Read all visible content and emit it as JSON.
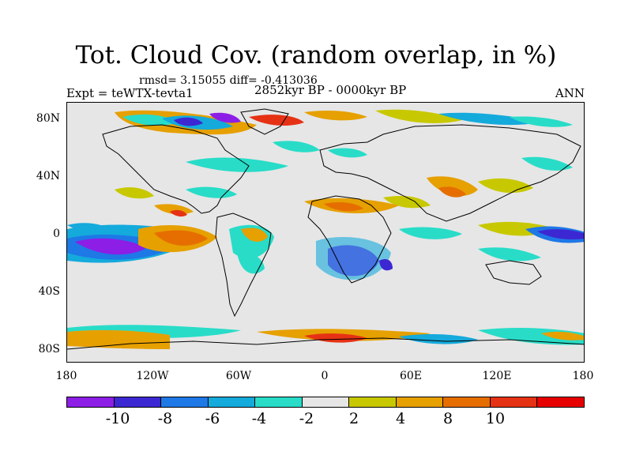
{
  "title": "Tot. Cloud Cov. (random overlap, in %)",
  "stats": "rmsd= 3.15055 diff= -0.413036",
  "experiment": "Expt = teWTX-tevta1",
  "period": "2852kyr BP - 0000kyr BP",
  "season": "ANN",
  "y_axis_labels": [
    "80N",
    "40N",
    "0",
    "40S",
    "80S"
  ],
  "x_axis_labels": [
    "180",
    "120W",
    "60W",
    "0",
    "60E",
    "120E",
    "180"
  ],
  "colorbar": {
    "colors": [
      "#8c1ee6",
      "#3c28d2",
      "#1e78e6",
      "#14aadc",
      "#28dcc8",
      "#e6e6e6",
      "#c8c800",
      "#e6a000",
      "#e66e00",
      "#e63214",
      "#e60000"
    ],
    "tick_labels": [
      "-10",
      "-8",
      "-6",
      "-4",
      "-2",
      "2",
      "4",
      "8",
      "10"
    ]
  },
  "map_data": {
    "type": "filled-contour",
    "variable": "Tot. Cloud Cov.",
    "units": "%",
    "lon_range": [
      -180,
      180
    ],
    "lat_range": [
      -90,
      90
    ]
  }
}
